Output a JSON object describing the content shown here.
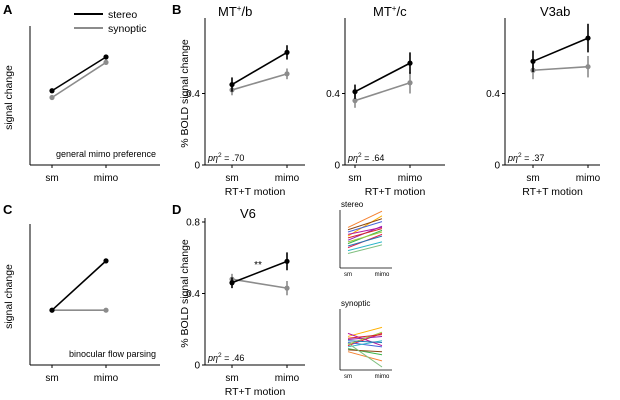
{
  "panel_labels": {
    "A": "A",
    "B": "B",
    "C": "C",
    "D": "D"
  },
  "legend": {
    "stereo": "stereo",
    "synoptic": "synoptic"
  },
  "colors": {
    "stereo": "#000000",
    "synoptic": "#8c8c8c"
  },
  "chart_data": [
    {
      "id": "A",
      "type": "line",
      "title": "",
      "ylabel": "signal change",
      "xlabel": "",
      "categories": [
        "sm",
        "mimo"
      ],
      "ylim": [
        0,
        1
      ],
      "schematic": true,
      "annotation": "general mimo preference",
      "series": [
        {
          "name": "stereo",
          "values": [
            0.55,
            0.8
          ]
        },
        {
          "name": "synoptic",
          "values": [
            0.5,
            0.76
          ]
        }
      ]
    },
    {
      "id": "MTb",
      "type": "line",
      "title_main": "MT",
      "title_sup": "+",
      "title_tail": "/b",
      "ylabel": "% BOLD  signal change",
      "xlabel": "RT+T motion",
      "categories": [
        "sm",
        "mimo"
      ],
      "ylim": [
        0,
        0.8
      ],
      "yticks": [
        "0",
        "0.4"
      ],
      "stat_prefix": "pη",
      "stat_sup": "2",
      "stat_value": " = .70",
      "series": [
        {
          "name": "stereo",
          "values": [
            0.45,
            0.63
          ],
          "err": [
            0.04,
            0.04
          ]
        },
        {
          "name": "synoptic",
          "values": [
            0.42,
            0.51
          ],
          "err": [
            0.03,
            0.03
          ]
        }
      ]
    },
    {
      "id": "MTc",
      "type": "line",
      "title_main": "MT",
      "title_sup": "+",
      "title_tail": "/c",
      "ylabel": "",
      "xlabel": "RT+T motion",
      "categories": [
        "sm",
        "mimo"
      ],
      "ylim": [
        0,
        0.8
      ],
      "yticks": [
        "0",
        "0.4"
      ],
      "stat_prefix": "pη",
      "stat_sup": "2",
      "stat_value": " = .64",
      "series": [
        {
          "name": "stereo",
          "values": [
            0.41,
            0.57
          ],
          "err": [
            0.04,
            0.06
          ]
        },
        {
          "name": "synoptic",
          "values": [
            0.36,
            0.46
          ],
          "err": [
            0.04,
            0.06
          ]
        }
      ]
    },
    {
      "id": "V3ab",
      "type": "line",
      "title_main": "V3ab",
      "title_sup": "",
      "title_tail": "",
      "ylabel": "",
      "xlabel": "RT+T motion",
      "categories": [
        "sm",
        "mimo"
      ],
      "ylim": [
        0,
        0.8
      ],
      "yticks": [
        "0",
        "0.4"
      ],
      "stat_prefix": "pη",
      "stat_sup": "2",
      "stat_value": " = .37",
      "series": [
        {
          "name": "stereo",
          "values": [
            0.58,
            0.71
          ],
          "err": [
            0.06,
            0.08
          ]
        },
        {
          "name": "synoptic",
          "values": [
            0.53,
            0.55
          ],
          "err": [
            0.05,
            0.06
          ]
        }
      ]
    },
    {
      "id": "C",
      "type": "line",
      "title": "",
      "ylabel": "signal change",
      "xlabel": "",
      "categories": [
        "sm",
        "mimo"
      ],
      "ylim": [
        0,
        1
      ],
      "schematic": true,
      "annotation": "binocular flow parsing",
      "series": [
        {
          "name": "stereo",
          "values": [
            0.4,
            0.76
          ]
        },
        {
          "name": "synoptic",
          "values": [
            0.4,
            0.4
          ]
        }
      ]
    },
    {
      "id": "V6",
      "type": "line",
      "title_main": "V6",
      "title_sup": "",
      "title_tail": "",
      "ylabel": "% BOLD  signal change",
      "xlabel": "RT+T motion",
      "categories": [
        "sm",
        "mimo"
      ],
      "ylim": [
        0,
        0.8
      ],
      "yticks": [
        "0",
        "0.4",
        "0.8"
      ],
      "stat_prefix": "pη",
      "stat_sup": "2",
      "stat_value": " = .46",
      "significance": "**",
      "series": [
        {
          "name": "stereo",
          "values": [
            0.46,
            0.58
          ],
          "err": [
            0.03,
            0.05
          ]
        },
        {
          "name": "synoptic",
          "values": [
            0.48,
            0.43
          ],
          "err": [
            0.03,
            0.04
          ]
        }
      ]
    },
    {
      "id": "inset_stereo",
      "type": "line",
      "title": "stereo",
      "categories": [
        "sm",
        "mimo"
      ],
      "ylim": [
        0,
        1
      ],
      "subjects_start": [
        0.35,
        0.42,
        0.55,
        0.62,
        0.7,
        0.48,
        0.3,
        0.58,
        0.45,
        0.66,
        0.38,
        0.52,
        0.25
      ],
      "subjects_end": [
        0.58,
        0.65,
        0.9,
        0.8,
        0.98,
        0.72,
        0.45,
        0.7,
        0.62,
        0.85,
        0.55,
        0.68,
        0.4
      ]
    },
    {
      "id": "inset_synoptic",
      "type": "line",
      "title": "synoptic",
      "categories": [
        "sm",
        "mimo"
      ],
      "ylim": [
        0,
        1
      ],
      "subjects_start": [
        0.4,
        0.35,
        0.55,
        0.45,
        0.3,
        0.5,
        0.38,
        0.6,
        0.42,
        0.33,
        0.48,
        0.52,
        0.44
      ],
      "subjects_end": [
        0.6,
        0.25,
        0.7,
        0.38,
        0.15,
        0.55,
        0.48,
        0.4,
        0.62,
        0.3,
        0.45,
        0.58,
        0.05
      ]
    }
  ]
}
